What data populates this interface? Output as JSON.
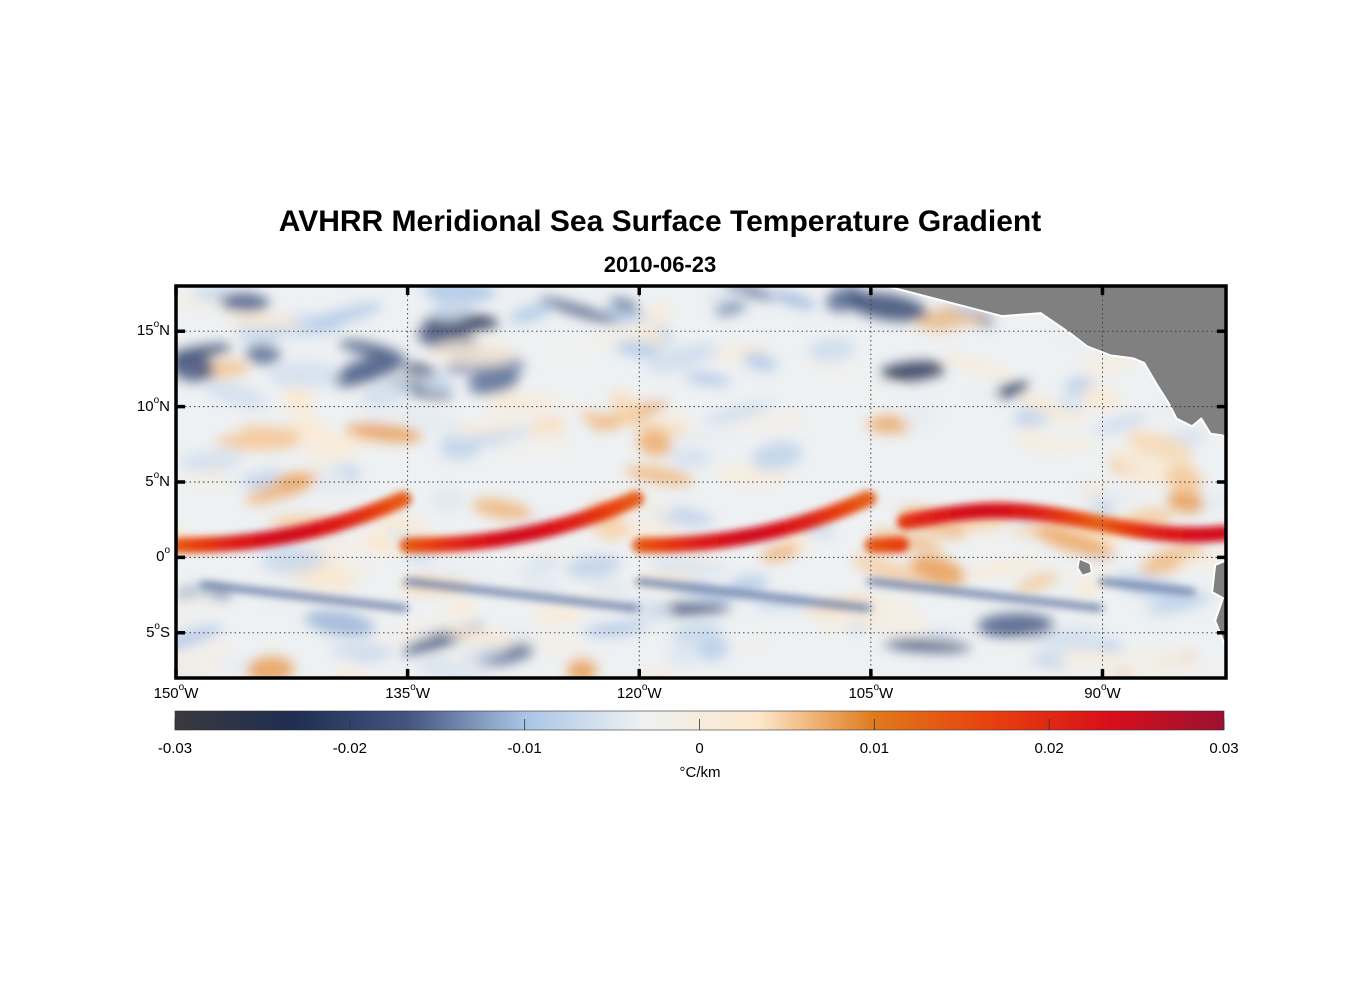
{
  "title": "AVHRR Meridional Sea Surface Temperature Gradient",
  "subtitle": "2010-06-23",
  "map": {
    "lon_range": [
      -150,
      -82
    ],
    "lat_range": [
      -8,
      18
    ],
    "lat_ticks": [
      {
        "value": 15,
        "num": "15",
        "deg": "o",
        "hem": "N"
      },
      {
        "value": 10,
        "num": "10",
        "deg": "o",
        "hem": "N"
      },
      {
        "value": 5,
        "num": "5",
        "deg": "o",
        "hem": "N"
      },
      {
        "value": 0,
        "num": "0",
        "deg": "o",
        "hem": ""
      },
      {
        "value": -5,
        "num": "5",
        "deg": "o",
        "hem": "S"
      }
    ],
    "lon_ticks": [
      {
        "value": -150,
        "num": "150",
        "deg": "o",
        "hem": "W"
      },
      {
        "value": -135,
        "num": "135",
        "deg": "o",
        "hem": "W"
      },
      {
        "value": -120,
        "num": "120",
        "deg": "o",
        "hem": "W"
      },
      {
        "value": -105,
        "num": "105",
        "deg": "o",
        "hem": "W"
      },
      {
        "value": -90,
        "num": "90",
        "deg": "o",
        "hem": "W"
      }
    ],
    "land_color": "#808080"
  },
  "colorbar": {
    "min": -0.03,
    "max": 0.03,
    "tick_labels": [
      "-0.03",
      "-0.02",
      "-0.01",
      "0",
      "0.01",
      "0.02",
      "0.03"
    ],
    "units": "°C/km",
    "colors": [
      "#3a3a3e",
      "#1f2d52",
      "#44557f",
      "#a9c4e6",
      "#eef1f3",
      "#fde8cc",
      "#e07a1c",
      "#e8400e",
      "#d8101a",
      "#9c1030"
    ]
  },
  "chart_data": {
    "type": "heatmap",
    "title": "AVHRR Meridional Sea Surface Temperature Gradient",
    "subtitle": "2010-06-23",
    "variable": "meridional SST gradient",
    "units": "°C/km",
    "clim": [
      -0.03,
      0.03
    ],
    "x_range_lon": [
      -150,
      -82
    ],
    "y_range_lat": [
      -8,
      18
    ],
    "features": [
      {
        "name": "equatorial front (positive gradient, tropical instability waves)",
        "lat_center": 1.5,
        "value": 0.02
      },
      {
        "name": "negative band south of equator",
        "lat_center": -2.5,
        "value": -0.015
      },
      {
        "name": "negative patches north",
        "lat_center": 14,
        "value": -0.02
      }
    ]
  }
}
